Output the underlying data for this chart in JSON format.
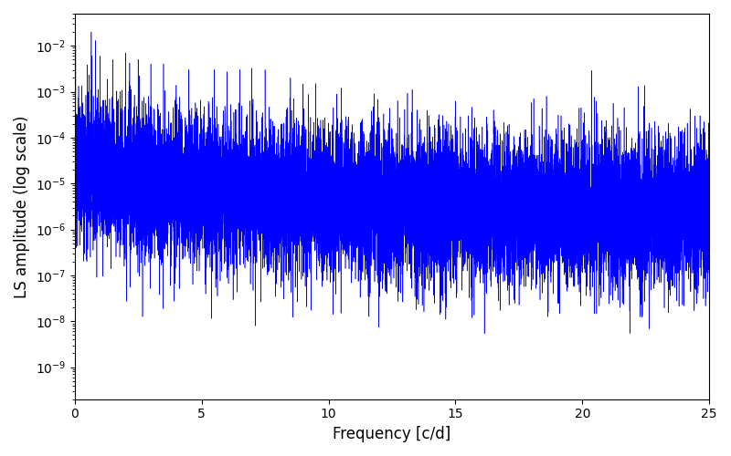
{
  "xlabel": "Frequency [c/d]",
  "ylabel": "LS amplitude (log scale)",
  "title": "",
  "line_color": "#0000ff",
  "line_width": 0.4,
  "xlim": [
    0,
    25
  ],
  "ylim_low": 2e-10,
  "ylim_high": 0.05,
  "freq_max": 25.0,
  "n_points": 15000,
  "seed": 12345,
  "background_color": "#ffffff",
  "figsize": [
    8.0,
    5.0
  ],
  "dpi": 100
}
